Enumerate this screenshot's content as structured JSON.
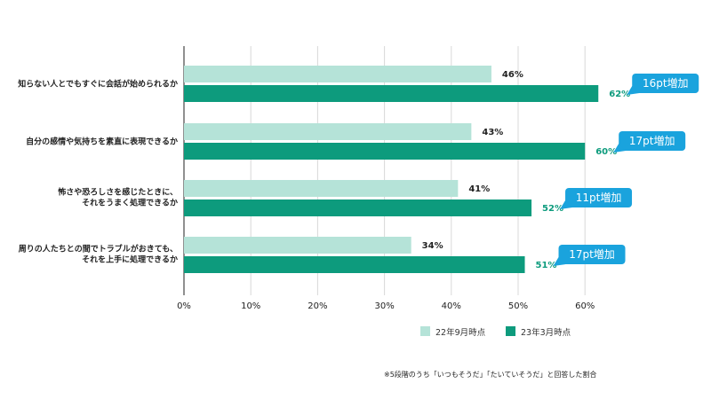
{
  "chart_data": {
    "type": "bar",
    "orientation": "horizontal",
    "categories": [
      [
        "知らない人とでもすぐに会話が始められるか"
      ],
      [
        "自分の感情や気持ちを素直に表現できるか"
      ],
      [
        "怖さや恐ろしさを感じたときに、",
        "それをうまく処理できるか"
      ],
      [
        "周りの人たちとの間でトラブルがおきても、",
        "それを上手に処理できるか"
      ]
    ],
    "series": [
      {
        "name": "22年9月時点",
        "values": [
          46,
          43,
          41,
          34
        ],
        "labels": [
          "46%",
          "43%",
          "41%",
          "34%"
        ],
        "color": "#b5e3d8"
      },
      {
        "name": "23年3月時点",
        "values": [
          62,
          60,
          52,
          51
        ],
        "labels": [
          "62%",
          "60%",
          "52%",
          "51%"
        ],
        "color": "#0d9b7d"
      }
    ],
    "callouts": [
      "16pt増加",
      "17pt増加",
      "11pt増加",
      "17pt増加"
    ],
    "xlim": [
      0,
      65
    ],
    "x_ticks": [
      "0%",
      "10%",
      "20%",
      "30%",
      "40%",
      "50%",
      "60%"
    ],
    "grid": true,
    "legend": "bottom-right",
    "footnote": "※5段階のうち「いつもそうだ」「たいていそうだ」と回答した割合",
    "colors": {
      "callout": "#1aa3dd",
      "gridline": "#d8d8d8",
      "axis": "#555555",
      "value_label_new": "#0d9b7d"
    }
  }
}
